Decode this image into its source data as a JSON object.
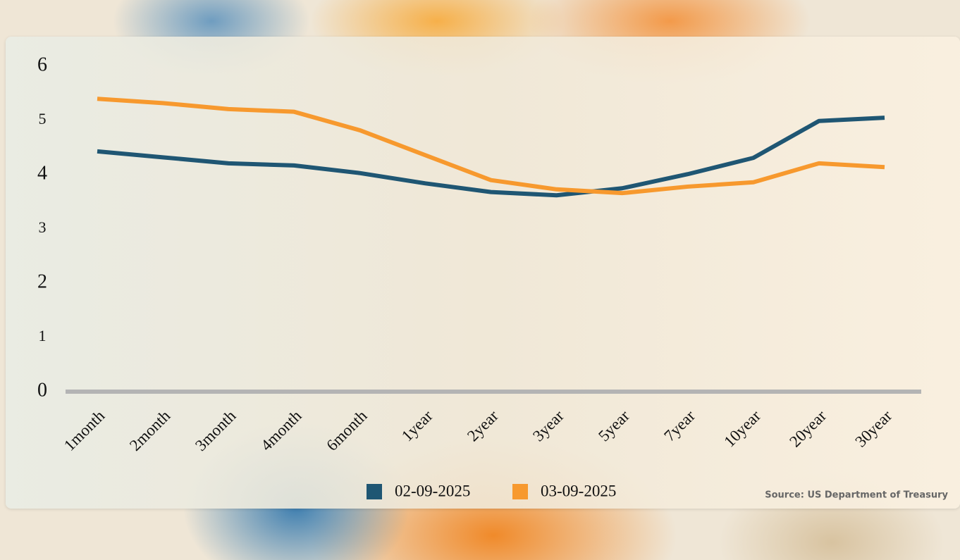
{
  "chart_data": {
    "type": "line",
    "categories": [
      "1month",
      "2month",
      "3month",
      "4month",
      "6month",
      "1year",
      "2year",
      "3year",
      "5year",
      "7year",
      "10year",
      "20year",
      "30year"
    ],
    "series": [
      {
        "name": "02-09-2025",
        "color": "#1f5673",
        "values": [
          4.43,
          4.32,
          4.21,
          4.17,
          4.03,
          3.84,
          3.68,
          3.62,
          3.75,
          4.01,
          4.31,
          4.99,
          5.05
        ]
      },
      {
        "name": "03-09-2025",
        "color": "#f7992e",
        "values": [
          5.4,
          5.32,
          5.21,
          5.16,
          4.82,
          4.36,
          3.9,
          3.73,
          3.66,
          3.78,
          3.86,
          4.21,
          4.14
        ]
      }
    ],
    "ylim": [
      0,
      6
    ],
    "yticks": [
      0,
      1,
      2,
      3,
      4,
      5,
      6
    ],
    "legend": "bottom",
    "source": "Source: US Department of Treasury"
  }
}
